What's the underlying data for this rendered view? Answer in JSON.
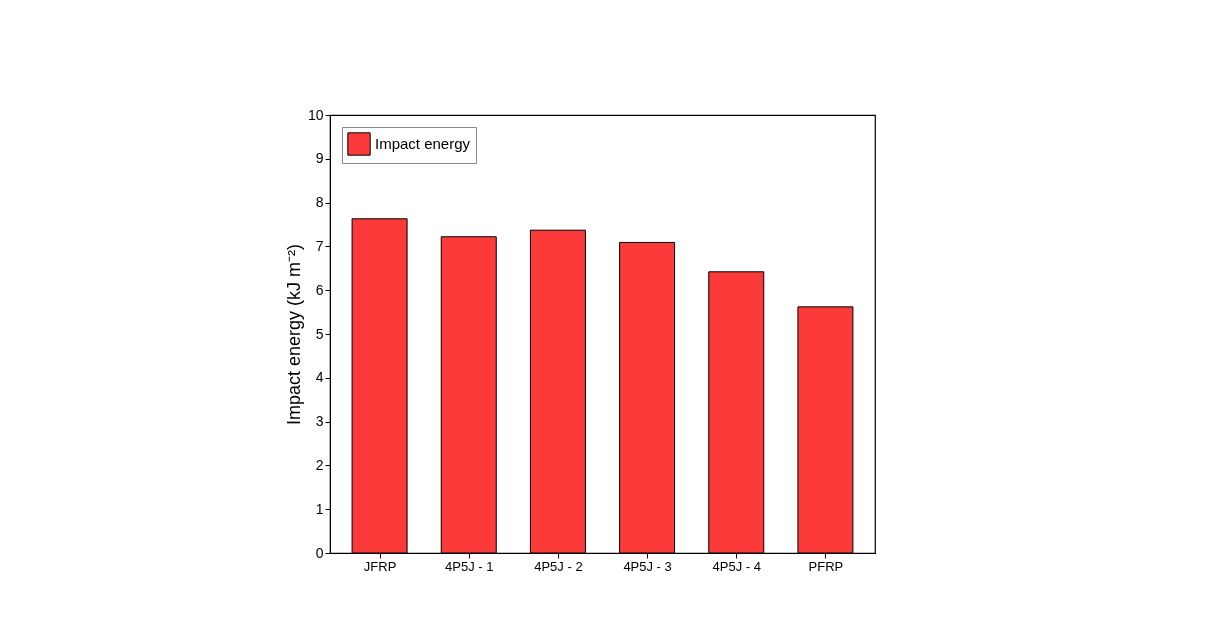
{
  "chart_data": {
    "type": "bar",
    "ylabel": "Impact energy (kJ m⁻²)",
    "categories": [
      "JFRP",
      "4P5J - 1",
      "4P5J - 2",
      "4P5J - 3",
      "4P5J - 4",
      "PFRP"
    ],
    "series": [
      {
        "name": "Impact energy",
        "color": "#fc3a3a",
        "values": [
          7.63,
          7.22,
          7.37,
          7.09,
          6.42,
          5.62
        ]
      }
    ],
    "ylim": [
      0,
      10
    ],
    "yticks": [
      0,
      1,
      2,
      3,
      4,
      5,
      6,
      7,
      8,
      9,
      10
    ],
    "grid": false,
    "legend": "top left"
  }
}
